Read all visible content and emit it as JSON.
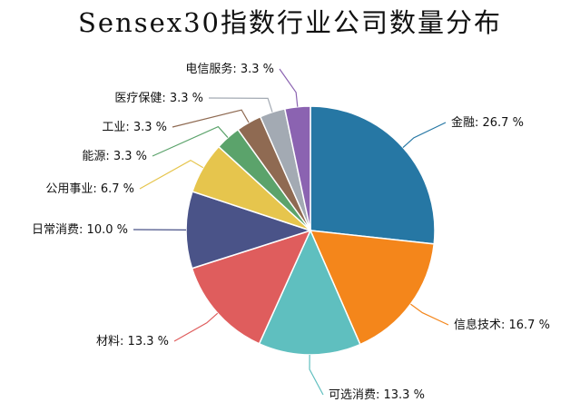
{
  "chart_data": {
    "type": "pie",
    "title": "Sensex30指数行业公司数量分布",
    "unit": "%",
    "slices": [
      {
        "label": "金融",
        "value": 26.7,
        "display": "金融: 26.7 %",
        "color": "#2677a4"
      },
      {
        "label": "信息技术",
        "value": 16.7,
        "display": "信息技术: 16.7 %",
        "color": "#f4861b"
      },
      {
        "label": "可选消费",
        "value": 13.3,
        "display": "可选消费: 13.3 %",
        "color": "#5fbfbf"
      },
      {
        "label": "材料",
        "value": 13.3,
        "display": "材料: 13.3 %",
        "color": "#df5d5d"
      },
      {
        "label": "日常消费",
        "value": 10.0,
        "display": "日常消费: 10.0 %",
        "color": "#4a5388"
      },
      {
        "label": "公用事业",
        "value": 6.7,
        "display": "公用事业: 6.7 %",
        "color": "#e6c54d"
      },
      {
        "label": "能源",
        "value": 3.3,
        "display": "能源: 3.3 %",
        "color": "#5ba36b"
      },
      {
        "label": "工业",
        "value": 3.3,
        "display": "工业: 3.3 %",
        "color": "#8f6a52"
      },
      {
        "label": "医疗保健",
        "value": 3.3,
        "display": "医疗保健: 3.3 %",
        "color": "#a3aab3"
      },
      {
        "label": "电信服务",
        "value": 3.3,
        "display": "电信服务: 3.3 %",
        "color": "#8b63b1"
      }
    ]
  }
}
